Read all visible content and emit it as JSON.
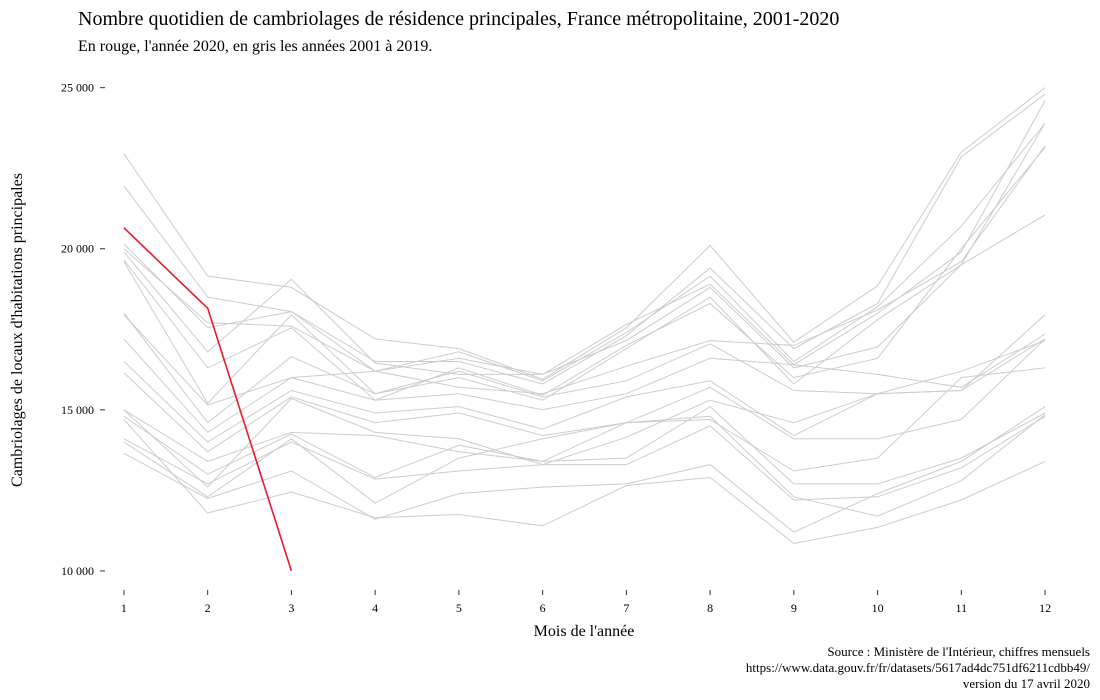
{
  "chart_data": {
    "type": "line",
    "title": "Nombre quotidien de cambriolages de résidence principales, France métropolitaine, 2001-2020",
    "subtitle": "En rouge, l'année 2020, en gris les années 2001 à 2019.",
    "x_label": "Mois de l'année",
    "y_label": "Cambriolages de locaux d'habitations principales",
    "source": [
      "Source : Ministère de l'Intérieur, chiffres mensuels",
      "https://www.data.gouv.fr/fr/datasets/5617ad4dc751df6211cdbb49/",
      "version du 17 avril 2020"
    ],
    "x": [
      1,
      2,
      3,
      4,
      5,
      6,
      7,
      8,
      9,
      10,
      11,
      12
    ],
    "xlim": [
      0.75,
      12.25
    ],
    "xticks": [
      1,
      2,
      3,
      4,
      5,
      6,
      7,
      8,
      9,
      10,
      11,
      12
    ],
    "ylim": [
      9500,
      25300
    ],
    "yticks": [
      {
        "value": 10000,
        "label": "10 000"
      },
      {
        "value": 15000,
        "label": "15 000"
      },
      {
        "value": 20000,
        "label": "20 000"
      },
      {
        "value": 25000,
        "label": "25 000"
      }
    ],
    "grid": false,
    "series": [
      {
        "color": "#cccccc",
        "values": [
          22950,
          19150,
          18800,
          17200,
          16900,
          15950,
          17550,
          20100,
          17100,
          18850,
          23000,
          25000
        ]
      },
      {
        "color": "#cccccc",
        "values": [
          21950,
          18500,
          18050,
          16500,
          16500,
          15800,
          17300,
          19400,
          16900,
          18300,
          22850,
          24800
        ]
      },
      {
        "color": "#cccccc",
        "values": [
          20150,
          17550,
          18050,
          16200,
          16800,
          15900,
          17400,
          19150,
          16500,
          18200,
          20700,
          23900
        ]
      },
      {
        "color": "#cccccc",
        "values": [
          19900,
          16800,
          19050,
          16450,
          16100,
          16100,
          17650,
          18900,
          16400,
          18000,
          19900,
          24600
        ]
      },
      {
        "color": "#cccccc",
        "values": [
          19600,
          15200,
          17950,
          15500,
          16000,
          15300,
          16900,
          18500,
          15800,
          17800,
          19500,
          23900
        ]
      },
      {
        "color": "#cccccc",
        "values": [
          19650,
          16300,
          17550,
          15300,
          16300,
          15450,
          17000,
          18300,
          16000,
          16600,
          20000,
          23150
        ]
      },
      {
        "color": "#cccccc",
        "values": [
          20000,
          17700,
          17600,
          16200,
          16600,
          16100,
          17150,
          18800,
          16300,
          16950,
          19500,
          21050
        ]
      },
      {
        "color": "#cccccc",
        "values": [
          17950,
          15150,
          16000,
          16200,
          15700,
          15500,
          16350,
          17150,
          17000,
          18100,
          19600,
          23200
        ]
      },
      {
        "color": "#cccccc",
        "values": [
          18000,
          14600,
          16650,
          15500,
          16200,
          15400,
          15900,
          17050,
          15600,
          15500,
          15600,
          17950
        ]
      },
      {
        "color": "#cccccc",
        "values": [
          17200,
          14300,
          16000,
          15300,
          15500,
          15000,
          15500,
          16600,
          16400,
          16100,
          15700,
          17350
        ]
      },
      {
        "color": "#cccccc",
        "values": [
          16500,
          14000,
          15600,
          14900,
          15100,
          14400,
          15400,
          15900,
          14200,
          15500,
          16200,
          17150
        ]
      },
      {
        "color": "#cccccc",
        "values": [
          16150,
          13700,
          15400,
          14600,
          14900,
          14200,
          14600,
          15700,
          14100,
          14100,
          14700,
          17200
        ]
      },
      {
        "color": "#cccccc",
        "values": [
          15000,
          13400,
          14300,
          14200,
          13700,
          13400,
          14600,
          14700,
          13100,
          13500,
          16000,
          16300
        ]
      },
      {
        "color": "#cccccc",
        "values": [
          14800,
          13000,
          14250,
          12900,
          13900,
          13400,
          13500,
          15100,
          12700,
          12700,
          13500,
          14900
        ]
      },
      {
        "color": "#cccccc",
        "values": [
          14100,
          12700,
          14000,
          12850,
          13100,
          13300,
          13300,
          14500,
          12200,
          12300,
          13200,
          14800
        ]
      },
      {
        "color": "#cccccc",
        "values": [
          14000,
          12300,
          14100,
          12100,
          13500,
          14100,
          14600,
          14800,
          12300,
          11700,
          12800,
          14850
        ]
      },
      {
        "color": "#cccccc",
        "values": [
          13650,
          12250,
          13100,
          11600,
          12400,
          12600,
          12700,
          13300,
          11200,
          12400,
          13400,
          15100
        ]
      },
      {
        "color": "#cccccc",
        "values": [
          14700,
          11800,
          12450,
          11650,
          11750,
          11400,
          12650,
          12900,
          10850,
          11350,
          12200,
          13400
        ]
      },
      {
        "color": "#cccccc",
        "values": [
          15000,
          12600,
          15350,
          14300,
          14100,
          13300,
          14150,
          15300,
          14600,
          15500,
          15600,
          17200
        ]
      },
      {
        "color": "#e8192c",
        "values": [
          20650,
          18150,
          10000,
          null,
          null,
          null,
          null,
          null,
          null,
          null,
          null,
          null
        ]
      }
    ]
  }
}
